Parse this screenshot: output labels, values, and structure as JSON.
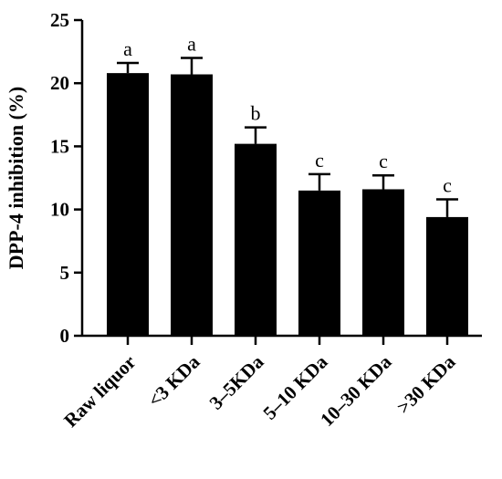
{
  "chart_data": {
    "type": "bar",
    "title": "",
    "xlabel": "",
    "ylabel": "DPP-4  inhibition (%)",
    "ylim": [
      0,
      25
    ],
    "yticks": [
      0,
      5,
      10,
      15,
      20,
      25
    ],
    "categories": [
      "Raw liquor",
      "<3 KDa",
      "3–5KDa",
      "5–10 KDa",
      "10–30 KDa",
      ">30 KDa"
    ],
    "values": [
      20.8,
      20.7,
      15.2,
      11.5,
      11.6,
      9.4
    ],
    "errors": [
      0.8,
      1.3,
      1.3,
      1.3,
      1.1,
      1.4
    ],
    "significance_labels": [
      "a",
      "a",
      "b",
      "c",
      "c",
      "c"
    ],
    "bar_color": "#000000",
    "grid": false,
    "legend": "none"
  }
}
